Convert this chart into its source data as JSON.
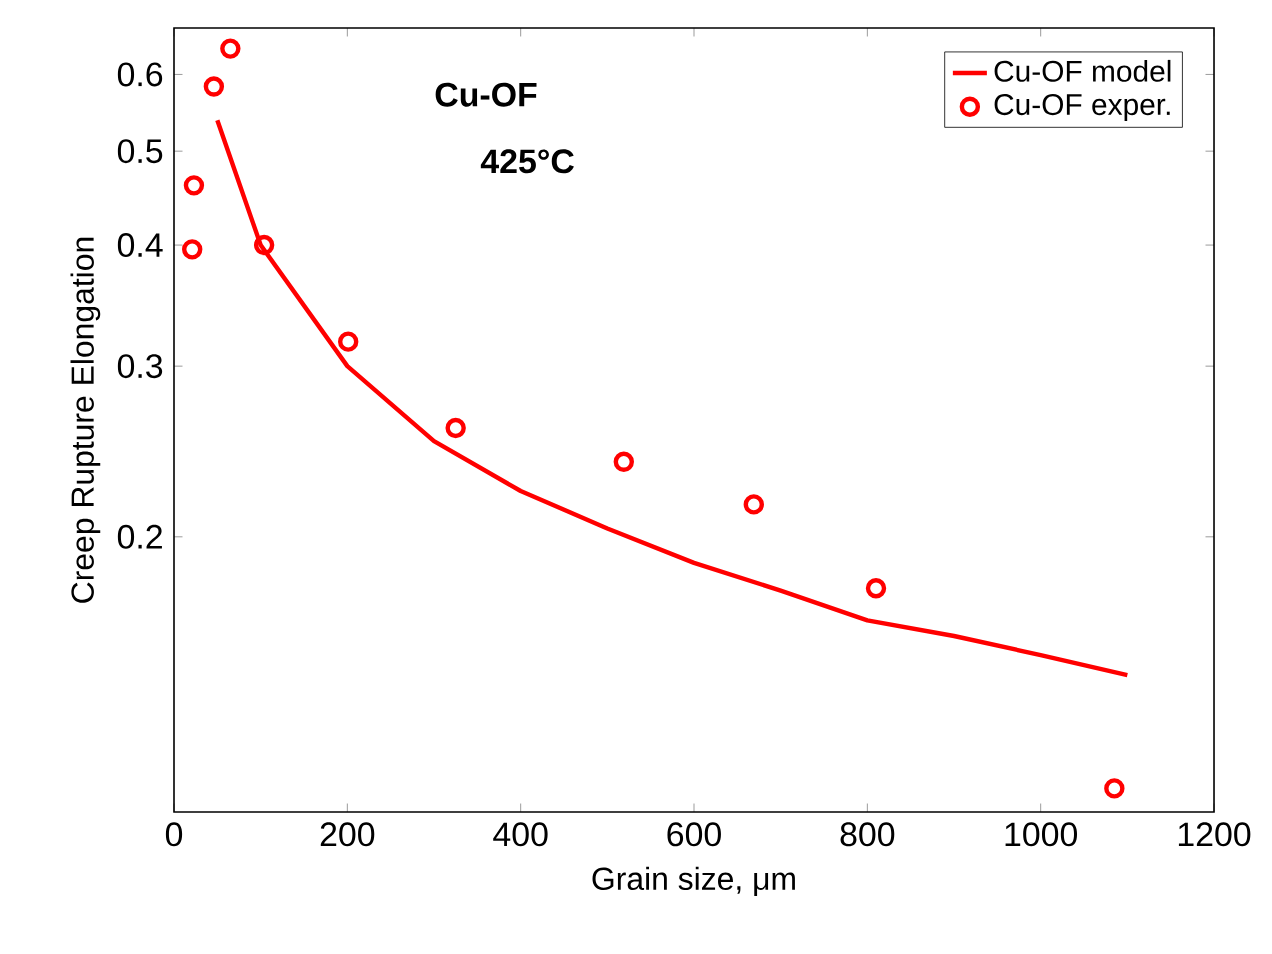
{
  "chart_data": {
    "type": "line",
    "xlabel": "Grain size, μm",
    "ylabel": "Creep Rupture Elongation",
    "annotations": [
      "**Cu-OF**",
      "**425°C**"
    ],
    "series": [
      {
        "name": "Cu-OF model",
        "color": "#ff0000",
        "marker": "none",
        "x": [
          50,
          100,
          200,
          300,
          400,
          500,
          600,
          700,
          800,
          900,
          1000,
          1100
        ],
        "values": [
          0.538,
          0.4,
          0.3,
          0.251,
          0.223,
          0.204,
          0.188,
          0.176,
          0.164,
          0.158,
          0.151,
          0.144
        ]
      },
      {
        "name": "Cu-OF exper.",
        "type": "scatter",
        "color": "#ff0000",
        "marker": "circle",
        "x": [
          21,
          23,
          46,
          65,
          104,
          201,
          325,
          519,
          669,
          810,
          1085
        ],
        "values": [
          0.396,
          0.461,
          0.583,
          0.638,
          0.4,
          0.318,
          0.259,
          0.239,
          0.216,
          0.177,
          0.11
        ]
      }
    ],
    "log": "y",
    "xlim": [
      0,
      1200
    ],
    "ylim": [
      0.104,
      0.67
    ],
    "xticks": [
      0,
      200,
      400,
      600,
      800,
      1000,
      1200
    ],
    "yticks": [
      0.2,
      0.3,
      0.4,
      0.5,
      0.6
    ],
    "legend": "top right",
    "grid": false
  }
}
